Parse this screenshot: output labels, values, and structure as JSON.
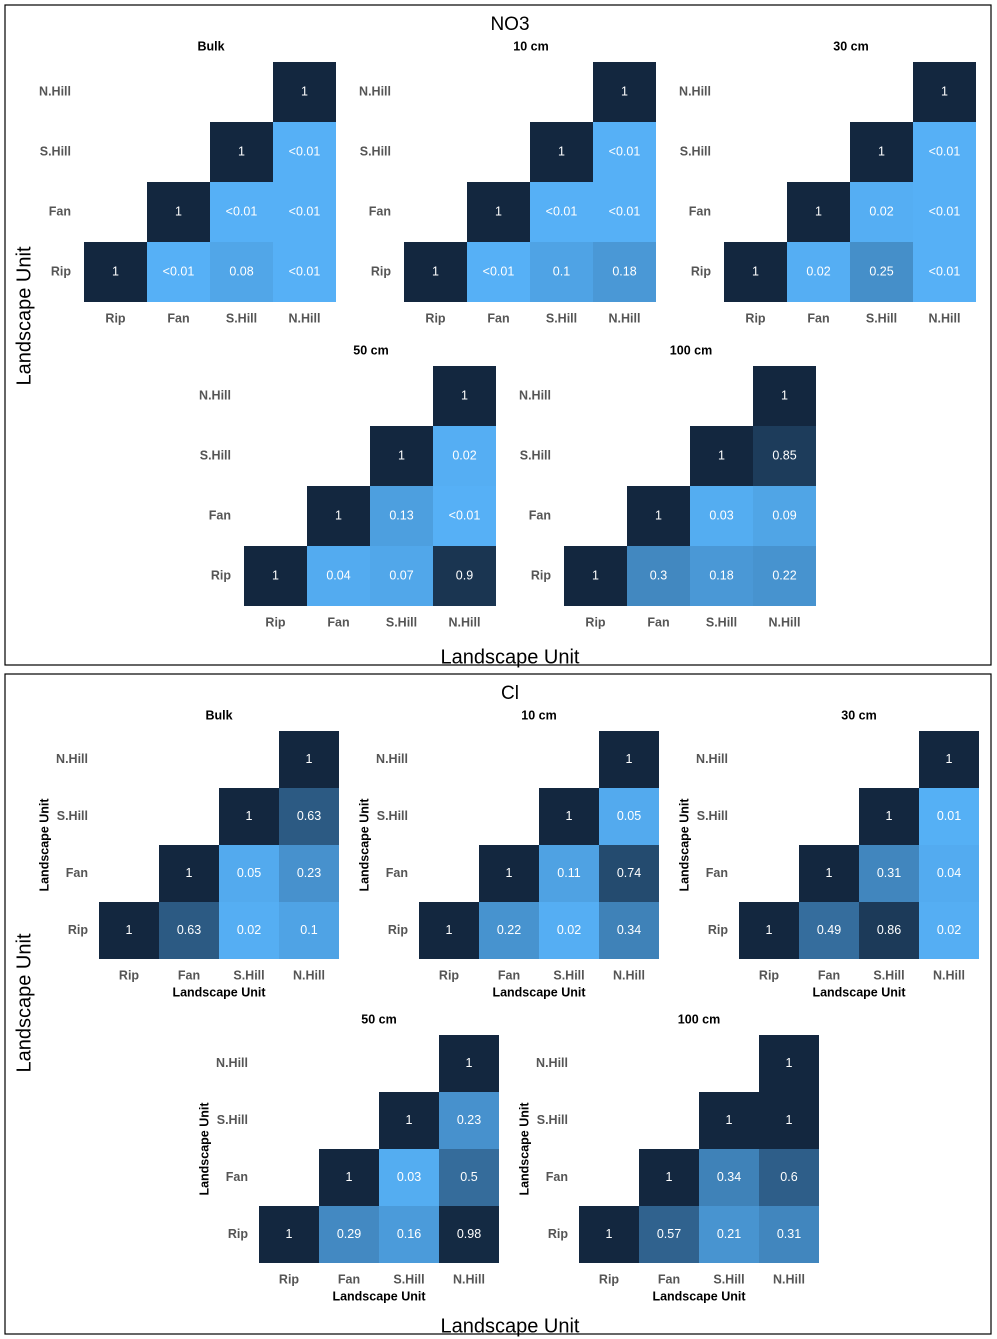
{
  "colors": {
    "dark": "#13273f",
    "light": "#56b1f7",
    "text": "#ffffff",
    "tick": "#555555",
    "border": "#000000"
  },
  "chart_data": [
    {
      "type": "heatmap",
      "title": "NO3",
      "xlabel": "Landscape Unit",
      "ylabel": "Landscape Unit",
      "categories": [
        "Rip",
        "Fan",
        "S.Hill",
        "N.Hill"
      ],
      "panels": [
        {
          "title": "Bulk",
          "xlabel": "",
          "ylabel": "",
          "rows": [
            {
              "label": "N.Hill",
              "cells": [
                null,
                null,
                null,
                {
                  "label": "1",
                  "value": 1
                }
              ]
            },
            {
              "label": "S.Hill",
              "cells": [
                null,
                null,
                {
                  "label": "1",
                  "value": 1
                },
                {
                  "label": "<0.01",
                  "value": 0.005
                }
              ]
            },
            {
              "label": "Fan",
              "cells": [
                null,
                {
                  "label": "1",
                  "value": 1
                },
                {
                  "label": "<0.01",
                  "value": 0.005
                },
                {
                  "label": "<0.01",
                  "value": 0.005
                }
              ]
            },
            {
              "label": "Rip",
              "cells": [
                {
                  "label": "1",
                  "value": 1
                },
                {
                  "label": "<0.01",
                  "value": 0.005
                },
                {
                  "label": "0.08",
                  "value": 0.08
                },
                {
                  "label": "<0.01",
                  "value": 0.005
                }
              ]
            }
          ]
        },
        {
          "title": "10 cm",
          "xlabel": "",
          "ylabel": "",
          "rows": [
            {
              "label": "N.Hill",
              "cells": [
                null,
                null,
                null,
                {
                  "label": "1",
                  "value": 1
                }
              ]
            },
            {
              "label": "S.Hill",
              "cells": [
                null,
                null,
                {
                  "label": "1",
                  "value": 1
                },
                {
                  "label": "<0.01",
                  "value": 0.005
                }
              ]
            },
            {
              "label": "Fan",
              "cells": [
                null,
                {
                  "label": "1",
                  "value": 1
                },
                {
                  "label": "<0.01",
                  "value": 0.005
                },
                {
                  "label": "<0.01",
                  "value": 0.005
                }
              ]
            },
            {
              "label": "Rip",
              "cells": [
                {
                  "label": "1",
                  "value": 1
                },
                {
                  "label": "<0.01",
                  "value": 0.005
                },
                {
                  "label": "0.1",
                  "value": 0.1
                },
                {
                  "label": "0.18",
                  "value": 0.18
                }
              ]
            }
          ]
        },
        {
          "title": "30 cm",
          "xlabel": "",
          "ylabel": "",
          "rows": [
            {
              "label": "N.Hill",
              "cells": [
                null,
                null,
                null,
                {
                  "label": "1",
                  "value": 1
                }
              ]
            },
            {
              "label": "S.Hill",
              "cells": [
                null,
                null,
                {
                  "label": "1",
                  "value": 1
                },
                {
                  "label": "<0.01",
                  "value": 0.005
                }
              ]
            },
            {
              "label": "Fan",
              "cells": [
                null,
                {
                  "label": "1",
                  "value": 1
                },
                {
                  "label": "0.02",
                  "value": 0.02
                },
                {
                  "label": "<0.01",
                  "value": 0.005
                }
              ]
            },
            {
              "label": "Rip",
              "cells": [
                {
                  "label": "1",
                  "value": 1
                },
                {
                  "label": "0.02",
                  "value": 0.02
                },
                {
                  "label": "0.25",
                  "value": 0.25
                },
                {
                  "label": "<0.01",
                  "value": 0.005
                }
              ]
            }
          ]
        },
        {
          "title": "50 cm",
          "xlabel": "",
          "ylabel": "",
          "rows": [
            {
              "label": "N.Hill",
              "cells": [
                null,
                null,
                null,
                {
                  "label": "1",
                  "value": 1
                }
              ]
            },
            {
              "label": "S.Hill",
              "cells": [
                null,
                null,
                {
                  "label": "1",
                  "value": 1
                },
                {
                  "label": "0.02",
                  "value": 0.02
                }
              ]
            },
            {
              "label": "Fan",
              "cells": [
                null,
                {
                  "label": "1",
                  "value": 1
                },
                {
                  "label": "0.13",
                  "value": 0.13
                },
                {
                  "label": "<0.01",
                  "value": 0.005
                }
              ]
            },
            {
              "label": "Rip",
              "cells": [
                {
                  "label": "1",
                  "value": 1
                },
                {
                  "label": "0.04",
                  "value": 0.04
                },
                {
                  "label": "0.07",
                  "value": 0.07
                },
                {
                  "label": "0.9",
                  "value": 0.9
                }
              ]
            }
          ]
        },
        {
          "title": "100 cm",
          "xlabel": "",
          "ylabel": "",
          "rows": [
            {
              "label": "N.Hill",
              "cells": [
                null,
                null,
                null,
                {
                  "label": "1",
                  "value": 1
                }
              ]
            },
            {
              "label": "S.Hill",
              "cells": [
                null,
                null,
                {
                  "label": "1",
                  "value": 1
                },
                {
                  "label": "0.85",
                  "value": 0.85
                }
              ]
            },
            {
              "label": "Fan",
              "cells": [
                null,
                {
                  "label": "1",
                  "value": 1
                },
                {
                  "label": "0.03",
                  "value": 0.03
                },
                {
                  "label": "0.09",
                  "value": 0.09
                }
              ]
            },
            {
              "label": "Rip",
              "cells": [
                {
                  "label": "1",
                  "value": 1
                },
                {
                  "label": "0.3",
                  "value": 0.3
                },
                {
                  "label": "0.18",
                  "value": 0.18
                },
                {
                  "label": "0.22",
                  "value": 0.22
                }
              ]
            }
          ]
        }
      ]
    },
    {
      "type": "heatmap",
      "title": "Cl",
      "xlabel": "Landscape Unit",
      "ylabel": "Landscape Unit",
      "categories": [
        "Rip",
        "Fan",
        "S.Hill",
        "N.Hill"
      ],
      "panels": [
        {
          "title": "Bulk",
          "xlabel": "Landscape Unit",
          "ylabel": "Landscape Unit",
          "rows": [
            {
              "label": "N.Hill",
              "cells": [
                null,
                null,
                null,
                {
                  "label": "1",
                  "value": 1
                }
              ]
            },
            {
              "label": "S.Hill",
              "cells": [
                null,
                null,
                {
                  "label": "1",
                  "value": 1
                },
                {
                  "label": "0.63",
                  "value": 0.63
                }
              ]
            },
            {
              "label": "Fan",
              "cells": [
                null,
                {
                  "label": "1",
                  "value": 1
                },
                {
                  "label": "0.05",
                  "value": 0.05
                },
                {
                  "label": "0.23",
                  "value": 0.23
                }
              ]
            },
            {
              "label": "Rip",
              "cells": [
                {
                  "label": "1",
                  "value": 1
                },
                {
                  "label": "0.63",
                  "value": 0.63
                },
                {
                  "label": "0.02",
                  "value": 0.02
                },
                {
                  "label": "0.1",
                  "value": 0.1
                }
              ]
            }
          ]
        },
        {
          "title": "10 cm",
          "xlabel": "Landscape Unit",
          "ylabel": "Landscape Unit",
          "rows": [
            {
              "label": "N.Hill",
              "cells": [
                null,
                null,
                null,
                {
                  "label": "1",
                  "value": 1
                }
              ]
            },
            {
              "label": "S.Hill",
              "cells": [
                null,
                null,
                {
                  "label": "1",
                  "value": 1
                },
                {
                  "label": "0.05",
                  "value": 0.05
                }
              ]
            },
            {
              "label": "Fan",
              "cells": [
                null,
                {
                  "label": "1",
                  "value": 1
                },
                {
                  "label": "0.11",
                  "value": 0.11
                },
                {
                  "label": "0.74",
                  "value": 0.74
                }
              ]
            },
            {
              "label": "Rip",
              "cells": [
                {
                  "label": "1",
                  "value": 1
                },
                {
                  "label": "0.22",
                  "value": 0.22
                },
                {
                  "label": "0.02",
                  "value": 0.02
                },
                {
                  "label": "0.34",
                  "value": 0.34
                }
              ]
            }
          ]
        },
        {
          "title": "30 cm",
          "xlabel": "Landscape Unit",
          "ylabel": "Landscape Unit",
          "rows": [
            {
              "label": "N.Hill",
              "cells": [
                null,
                null,
                null,
                {
                  "label": "1",
                  "value": 1
                }
              ]
            },
            {
              "label": "S.Hill",
              "cells": [
                null,
                null,
                {
                  "label": "1",
                  "value": 1
                },
                {
                  "label": "0.01",
                  "value": 0.01
                }
              ]
            },
            {
              "label": "Fan",
              "cells": [
                null,
                {
                  "label": "1",
                  "value": 1
                },
                {
                  "label": "0.31",
                  "value": 0.31
                },
                {
                  "label": "0.04",
                  "value": 0.04
                }
              ]
            },
            {
              "label": "Rip",
              "cells": [
                {
                  "label": "1",
                  "value": 1
                },
                {
                  "label": "0.49",
                  "value": 0.49
                },
                {
                  "label": "0.86",
                  "value": 0.86
                },
                {
                  "label": "0.02",
                  "value": 0.02
                }
              ]
            }
          ]
        },
        {
          "title": "50 cm",
          "xlabel": "Landscape Unit",
          "ylabel": "Landscape Unit",
          "rows": [
            {
              "label": "N.Hill",
              "cells": [
                null,
                null,
                null,
                {
                  "label": "1",
                  "value": 1
                }
              ]
            },
            {
              "label": "S.Hill",
              "cells": [
                null,
                null,
                {
                  "label": "1",
                  "value": 1
                },
                {
                  "label": "0.23",
                  "value": 0.23
                }
              ]
            },
            {
              "label": "Fan",
              "cells": [
                null,
                {
                  "label": "1",
                  "value": 1
                },
                {
                  "label": "0.03",
                  "value": 0.03
                },
                {
                  "label": "0.5",
                  "value": 0.5
                }
              ]
            },
            {
              "label": "Rip",
              "cells": [
                {
                  "label": "1",
                  "value": 1
                },
                {
                  "label": "0.29",
                  "value": 0.29
                },
                {
                  "label": "0.16",
                  "value": 0.16
                },
                {
                  "label": "0.98",
                  "value": 0.98
                }
              ]
            }
          ]
        },
        {
          "title": "100 cm",
          "xlabel": "Landscape Unit",
          "ylabel": "Landscape Unit",
          "rows": [
            {
              "label": "N.Hill",
              "cells": [
                null,
                null,
                null,
                {
                  "label": "1",
                  "value": 1
                }
              ]
            },
            {
              "label": "S.Hill",
              "cells": [
                null,
                null,
                {
                  "label": "1",
                  "value": 1
                },
                {
                  "label": "1",
                  "value": 1
                }
              ]
            },
            {
              "label": "Fan",
              "cells": [
                null,
                {
                  "label": "1",
                  "value": 1
                },
                {
                  "label": "0.34",
                  "value": 0.34
                },
                {
                  "label": "0.6",
                  "value": 0.6
                }
              ]
            },
            {
              "label": "Rip",
              "cells": [
                {
                  "label": "1",
                  "value": 1
                },
                {
                  "label": "0.57",
                  "value": 0.57
                },
                {
                  "label": "0.21",
                  "value": 0.21
                },
                {
                  "label": "0.31",
                  "value": 0.31
                }
              ]
            }
          ]
        }
      ]
    }
  ]
}
